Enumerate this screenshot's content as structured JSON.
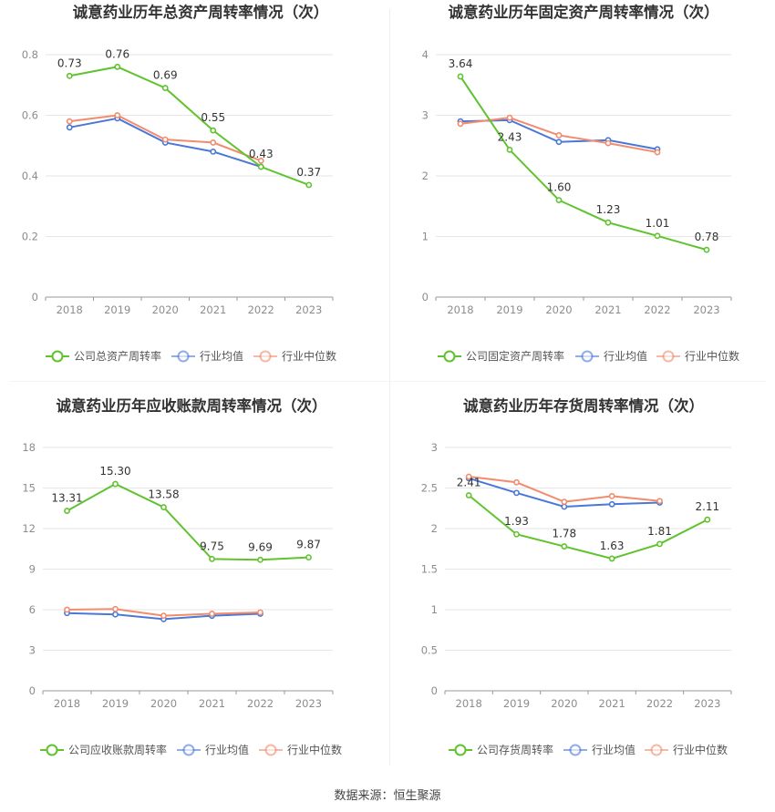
{
  "source_label": "数据来源：恒生聚源",
  "colors": {
    "company": "#5fc32e",
    "avg": "#4a78d8",
    "median": "#f38b6d",
    "grid": "#e6e6e6",
    "axis": "#999999"
  },
  "chart_data": [
    {
      "type": "line",
      "title": "诚意药业历年总资产周转率情况（次）",
      "categories": [
        "2018",
        "2019",
        "2020",
        "2021",
        "2022",
        "2023"
      ],
      "yticks": [
        "0",
        "0.2",
        "0.4",
        "0.6",
        "0.8"
      ],
      "ylim": [
        0,
        0.8
      ],
      "grid": true,
      "legend_position": "bottom",
      "series": [
        {
          "name": "公司总资产周转率",
          "key": "company",
          "values": [
            0.73,
            0.76,
            0.69,
            0.55,
            0.43,
            0.37
          ],
          "labels": [
            "0.73",
            "0.76",
            "0.69",
            "0.55",
            "0.43",
            "0.37"
          ]
        },
        {
          "name": "行业均值",
          "key": "avg",
          "values": [
            0.56,
            0.59,
            0.51,
            0.48,
            0.43,
            null
          ]
        },
        {
          "name": "行业中位数",
          "key": "median",
          "values": [
            0.58,
            0.6,
            0.52,
            0.51,
            0.45,
            null
          ]
        }
      ]
    },
    {
      "type": "line",
      "title": "诚意药业历年固定资产周转率情况（次）",
      "categories": [
        "2018",
        "2019",
        "2020",
        "2021",
        "2022",
        "2023"
      ],
      "yticks": [
        "0",
        "1",
        "2",
        "3",
        "4"
      ],
      "ylim": [
        0,
        4
      ],
      "grid": true,
      "legend_position": "bottom",
      "series": [
        {
          "name": "公司固定资产周转率",
          "key": "company",
          "values": [
            3.64,
            2.43,
            1.6,
            1.23,
            1.01,
            0.78
          ],
          "labels": [
            "3.64",
            "2.43",
            "1.60",
            "1.23",
            "1.01",
            "0.78"
          ]
        },
        {
          "name": "行业均值",
          "key": "avg",
          "values": [
            2.9,
            2.92,
            2.56,
            2.59,
            2.44,
            null
          ]
        },
        {
          "name": "行业中位数",
          "key": "median",
          "values": [
            2.86,
            2.96,
            2.67,
            2.54,
            2.39,
            null
          ]
        }
      ]
    },
    {
      "type": "line",
      "title": "诚意药业历年应收账款周转率情况（次）",
      "categories": [
        "2018",
        "2019",
        "2020",
        "2021",
        "2022",
        "2023"
      ],
      "yticks": [
        "0",
        "3",
        "6",
        "9",
        "12",
        "15",
        "18"
      ],
      "ylim": [
        0,
        18
      ],
      "grid": true,
      "legend_position": "bottom",
      "series": [
        {
          "name": "公司应收账款周转率",
          "key": "company",
          "values": [
            13.31,
            15.3,
            13.58,
            9.75,
            9.69,
            9.87
          ],
          "labels": [
            "13.31",
            "15.30",
            "13.58",
            "9.75",
            "9.69",
            "9.87"
          ]
        },
        {
          "name": "行业均值",
          "key": "avg",
          "values": [
            5.75,
            5.65,
            5.3,
            5.55,
            5.7,
            null
          ]
        },
        {
          "name": "行业中位数",
          "key": "median",
          "values": [
            6.0,
            6.05,
            5.55,
            5.7,
            5.8,
            null
          ]
        }
      ]
    },
    {
      "type": "line",
      "title": "诚意药业历年存货周转率情况（次）",
      "categories": [
        "2018",
        "2019",
        "2020",
        "2021",
        "2022",
        "2023"
      ],
      "yticks": [
        "0",
        "0.5",
        "1",
        "1.5",
        "2",
        "2.5",
        "3"
      ],
      "ylim": [
        0,
        3
      ],
      "grid": true,
      "legend_position": "bottom",
      "series": [
        {
          "name": "公司存货周转率",
          "key": "company",
          "values": [
            2.41,
            1.93,
            1.78,
            1.63,
            1.81,
            2.11
          ],
          "labels": [
            "2.41",
            "1.93",
            "1.78",
            "1.63",
            "1.81",
            "2.11"
          ]
        },
        {
          "name": "行业均值",
          "key": "avg",
          "values": [
            2.62,
            2.44,
            2.27,
            2.3,
            2.32,
            null
          ]
        },
        {
          "name": "行业中位数",
          "key": "median",
          "values": [
            2.64,
            2.57,
            2.33,
            2.4,
            2.34,
            null
          ]
        }
      ]
    }
  ]
}
